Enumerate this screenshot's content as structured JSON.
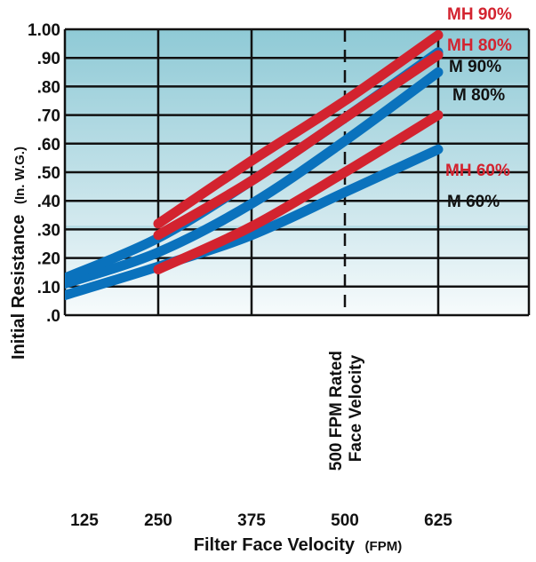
{
  "chart_data": {
    "type": "line",
    "title": "",
    "xlabel": "Filter Face Velocity",
    "xlabel_unit": "(FPM)",
    "ylabel": "Initial Resistance",
    "ylabel_unit": "(In. W.G.)",
    "xlim": [
      125,
      750
    ],
    "ylim": [
      0,
      1.0
    ],
    "x_ticks": [
      125,
      250,
      375,
      500,
      625
    ],
    "x_tick_labels": [
      "125",
      "250",
      "375",
      "500",
      "625"
    ],
    "y_ticks": [
      0,
      0.1,
      0.2,
      0.3,
      0.4,
      0.5,
      0.6,
      0.7,
      0.8,
      0.9,
      1.0
    ],
    "y_tick_labels": [
      ".0",
      ".10",
      ".20",
      ".30",
      ".40",
      ".50",
      ".60",
      ".70",
      ".80",
      ".90",
      "1.00"
    ],
    "grid": true,
    "colors": {
      "M": "#0a72bd",
      "MH": "#d3232f"
    },
    "annotation": {
      "x": 500,
      "line1": "500 FPM Rated",
      "line2": "Face Velocity"
    },
    "series": [
      {
        "name": "M 60%",
        "group": "M",
        "points": [
          [
            125,
            0.07
          ],
          [
            250,
            0.17
          ],
          [
            375,
            0.28
          ],
          [
            500,
            0.43
          ],
          [
            625,
            0.58
          ]
        ]
      },
      {
        "name": "M 80%",
        "group": "M",
        "points": [
          [
            125,
            0.11
          ],
          [
            250,
            0.22
          ],
          [
            375,
            0.39
          ],
          [
            500,
            0.61
          ],
          [
            625,
            0.85
          ]
        ]
      },
      {
        "name": "M 90%",
        "group": "M",
        "points": [
          [
            125,
            0.13
          ],
          [
            250,
            0.27
          ],
          [
            375,
            0.47
          ],
          [
            500,
            0.69
          ],
          [
            625,
            0.92
          ]
        ]
      },
      {
        "name": "MH 60%",
        "group": "MH",
        "points": [
          [
            250,
            0.16
          ],
          [
            375,
            0.31
          ],
          [
            500,
            0.5
          ],
          [
            625,
            0.7
          ]
        ]
      },
      {
        "name": "MH 80%",
        "group": "MH",
        "points": [
          [
            250,
            0.28
          ],
          [
            375,
            0.47
          ],
          [
            500,
            0.69
          ],
          [
            625,
            0.91
          ]
        ]
      },
      {
        "name": "MH 90%",
        "group": "MH",
        "points": [
          [
            250,
            0.32
          ],
          [
            375,
            0.54
          ],
          [
            500,
            0.75
          ],
          [
            625,
            0.98
          ]
        ]
      }
    ]
  }
}
